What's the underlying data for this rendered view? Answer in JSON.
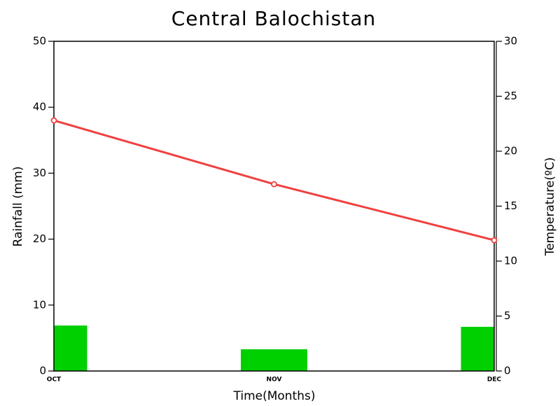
{
  "chart_data": {
    "type": "combo",
    "title": "Central Balochistan",
    "x_label": "Time(Months)",
    "y_label": "Rainfall (mm)",
    "y2_label": "Temperature(ºC)",
    "categories": [
      "OCT",
      "NOV",
      "DEC"
    ],
    "series": [
      {
        "name": "Rainfall",
        "type": "bar",
        "color": "#00d000",
        "values": [
          6.9,
          3.3,
          6.7
        ]
      },
      {
        "name": "Temperature",
        "type": "line",
        "color": "#f04040",
        "axis": "y2",
        "values": [
          22.8,
          17.0,
          11.9
        ]
      }
    ],
    "ylim": [
      0,
      50
    ],
    "yticks": [
      0,
      10,
      20,
      30,
      40,
      50
    ],
    "y2lim": [
      0,
      30
    ],
    "y2ticks": [
      0,
      5,
      10,
      15,
      20,
      25,
      30
    ]
  }
}
